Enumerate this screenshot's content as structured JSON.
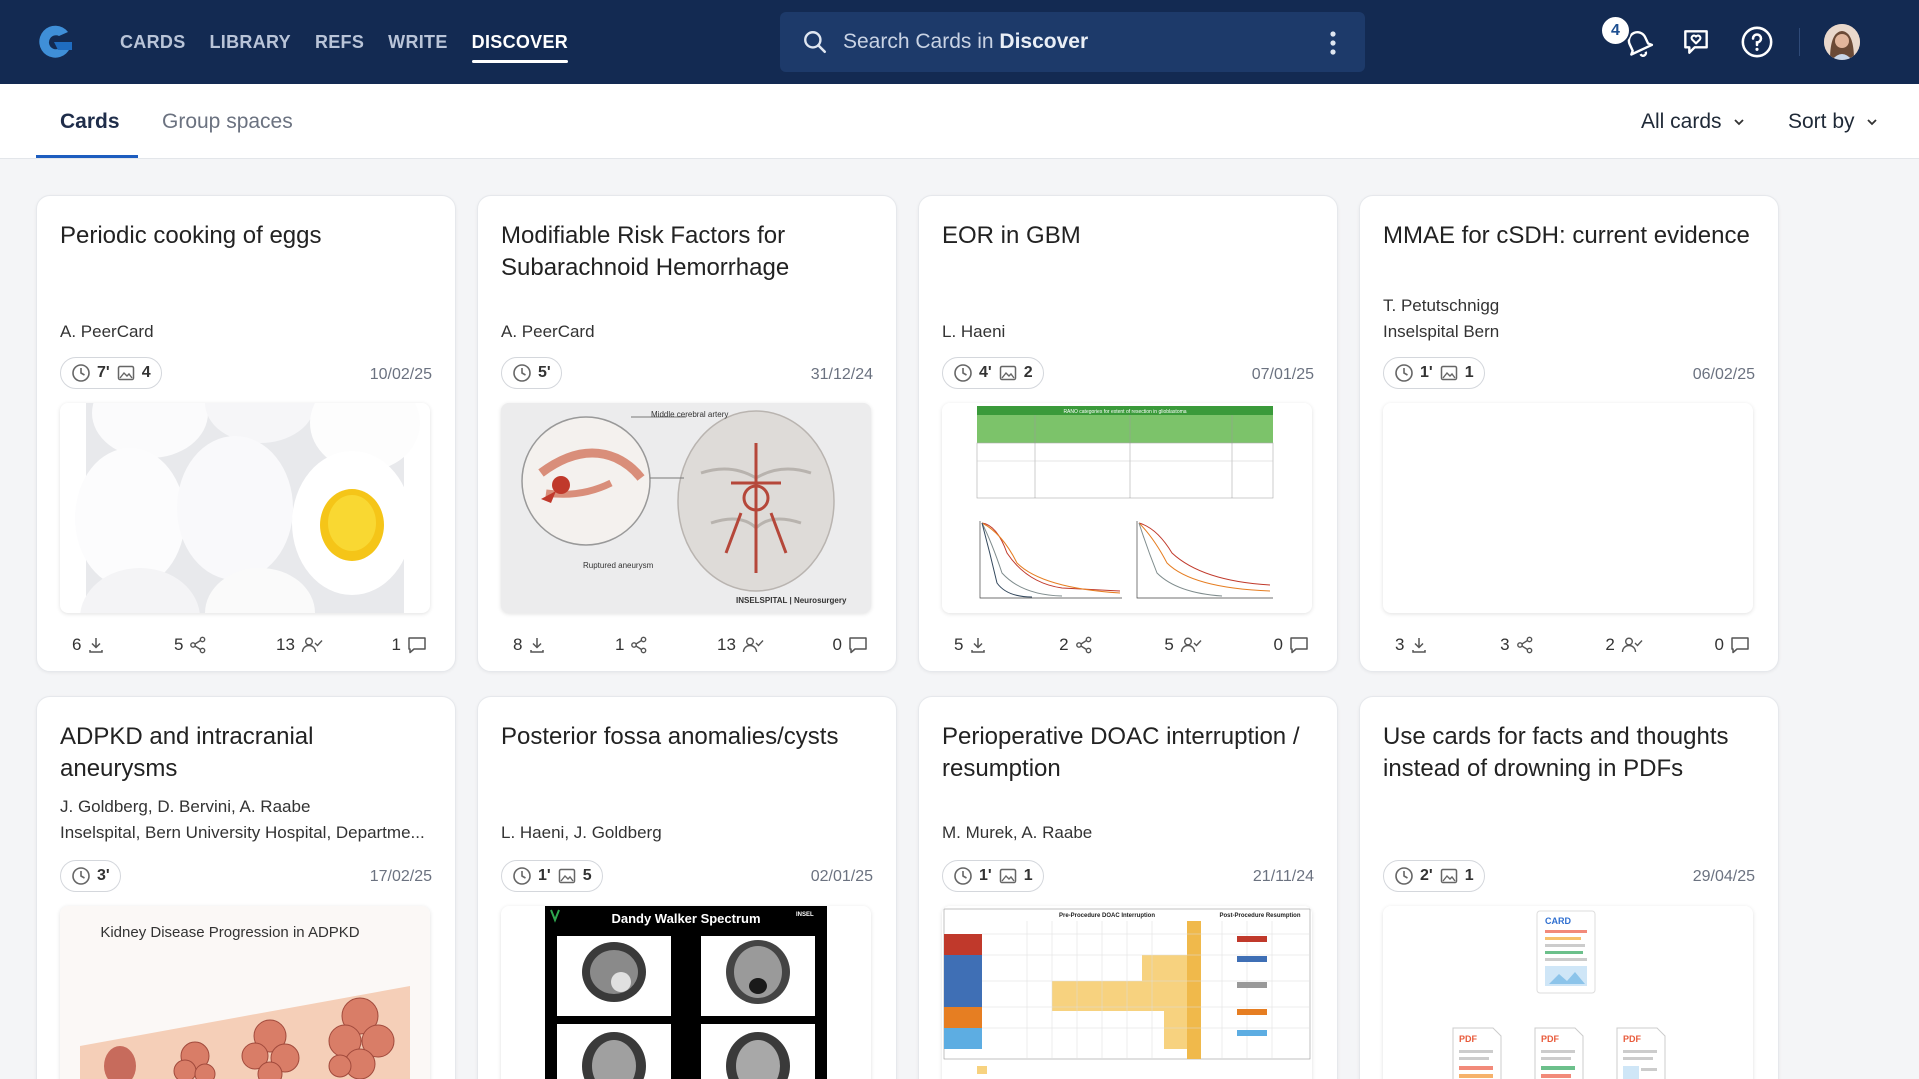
{
  "nav": {
    "items": [
      "CARDS",
      "LIBRARY",
      "REFS",
      "WRITE",
      "DISCOVER"
    ],
    "active": "DISCOVER"
  },
  "search": {
    "placeholder_prefix": "Search Cards in ",
    "placeholder_scope": "Discover"
  },
  "notifications": {
    "count": "4"
  },
  "tabs": {
    "cards": "Cards",
    "group_spaces": "Group spaces"
  },
  "filters": {
    "all_cards": "All cards",
    "sort_by": "Sort by"
  },
  "colors": {
    "topbar": "#132a52",
    "accent": "#1d5dbf"
  },
  "cards": [
    {
      "title": "Periodic cooking of eggs",
      "authors": [
        "A. PeerCard"
      ],
      "time": "7'",
      "images": "4",
      "date": "10/02/25",
      "thumb": "egg-photo",
      "downloads": "6",
      "shares": "5",
      "followers": "13",
      "comments": "1"
    },
    {
      "title": "Modifiable Risk Factors for Subarachnoid Hemorrhage",
      "authors": [
        "A. PeerCard"
      ],
      "time": "5'",
      "images": "",
      "date": "31/12/24",
      "thumb": "brain-aneurysm-illustration",
      "thumb_labels": [
        "Middle cerebral artery",
        "Ruptured aneurysm",
        "INSELSPITAL | Neurosurgery"
      ],
      "downloads": "8",
      "shares": "1",
      "followers": "13",
      "comments": "0"
    },
    {
      "title": "EOR in GBM",
      "authors": [
        "L. Haeni"
      ],
      "time": "4'",
      "images": "2",
      "date": "07/01/25",
      "thumb": "rano-table-and-survival-curves",
      "thumb_labels": [
        "RANO categories for extent of resection in glioblastoma"
      ],
      "downloads": "5",
      "shares": "2",
      "followers": "5",
      "comments": "0"
    },
    {
      "title": "MMAE for cSDH: current evidence",
      "authors": [
        "T. Petutschnigg",
        "Inselspital Bern"
      ],
      "time": "1'",
      "images": "1",
      "date": "06/02/25",
      "thumb": "blank",
      "downloads": "3",
      "shares": "3",
      "followers": "2",
      "comments": "0"
    },
    {
      "title": "ADPKD and intracranial aneurysms",
      "authors": [
        "J. Goldberg, D. Bervini, A. Raabe",
        "Inselspital, Bern University Hospital, Departme..."
      ],
      "time": "3'",
      "images": "",
      "date": "17/02/25",
      "thumb": "kidney-illustration",
      "thumb_labels": [
        "Kidney Disease Progression in ADPKD"
      ]
    },
    {
      "title": "Posterior fossa anomalies/cysts",
      "authors": [
        "L. Haeni, J. Goldberg"
      ],
      "time": "1'",
      "images": "5",
      "date": "02/01/25",
      "thumb": "mri-grid",
      "thumb_labels": [
        "Dandy Walker Spectrum",
        "INSEL"
      ]
    },
    {
      "title": "Perioperative DOAC interruption / resumption",
      "authors": [
        "M. Murek, A. Raabe"
      ],
      "time": "1'",
      "images": "1",
      "date": "21/11/24",
      "thumb": "doac-table",
      "thumb_labels": [
        "Pre-Procedure DOAC Interruption",
        "Post-Procedure Resumption"
      ]
    },
    {
      "title": "Use cards for facts and thoughts instead of drowning in PDFs",
      "authors": [],
      "time": "2'",
      "images": "1",
      "date": "29/04/25",
      "thumb": "card-vs-pdf-illustration",
      "thumb_labels": [
        "CARD",
        "PDF",
        "PDF",
        "PDF"
      ]
    }
  ]
}
